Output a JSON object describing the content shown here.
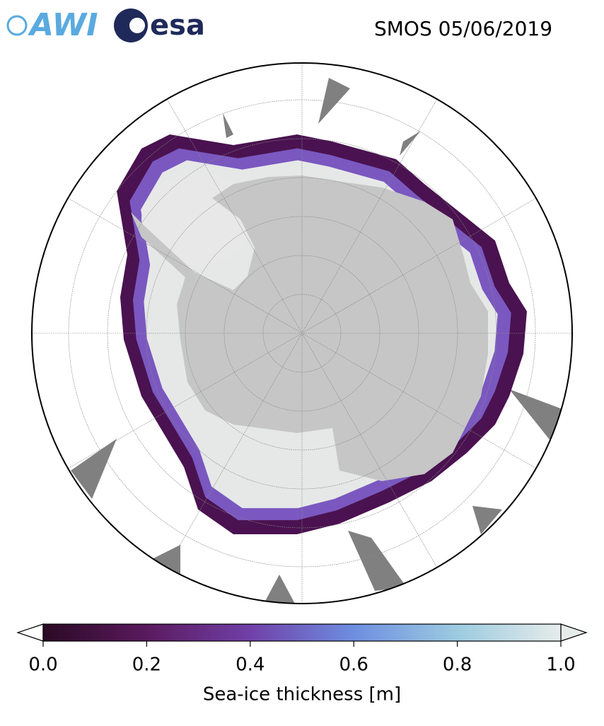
{
  "header": {
    "logos": [
      "AWI",
      "esa"
    ],
    "title": "SMOS 05/06/2019"
  },
  "colorbar": {
    "label": "Sea-ice thickness [m]",
    "lim": [
      0,
      1
    ],
    "ticks": [
      {
        "value": 0,
        "label": "0.0"
      },
      {
        "value": 0.2,
        "label": "0.2"
      },
      {
        "value": 0.4,
        "label": "0.4"
      },
      {
        "value": 0.6,
        "label": "0.6"
      },
      {
        "value": 0.8,
        "label": "0.8"
      },
      {
        "value": 1,
        "label": "1.0"
      }
    ]
  }
}
